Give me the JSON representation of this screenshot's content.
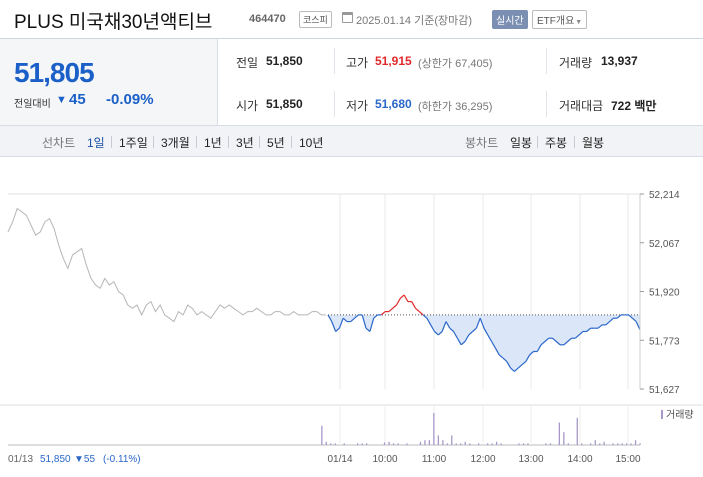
{
  "header": {
    "title": "PLUS 미국채30년액티브",
    "code": "464470",
    "market": "코스피",
    "date": "2025.01.14 기준(장마감)",
    "realtime_label": "실시간",
    "etf_label": "ETF개요"
  },
  "summary": {
    "price": "51,805",
    "change_label": "전일대비",
    "change_arrow": "▼",
    "change": "45",
    "change_pct": "-0.09%"
  },
  "stats": {
    "prev_close": {
      "label": "전일",
      "value": "51,850"
    },
    "high": {
      "label": "고가",
      "value": "51,915",
      "sub": "(상한가 67,405)"
    },
    "volume": {
      "label": "거래량",
      "value": "13,937"
    },
    "open": {
      "label": "시가",
      "value": "51,850"
    },
    "low": {
      "label": "저가",
      "value": "51,680",
      "sub": "(하한가 36,295)"
    },
    "amount": {
      "label": "거래대금",
      "value": "722 백만"
    }
  },
  "toolbar": {
    "line_label": "선차트",
    "line_tabs": [
      "1일",
      "1주일",
      "3개월",
      "1년",
      "3년",
      "5년",
      "10년"
    ],
    "selected_line_tab": "1일",
    "candle_label": "봉차트",
    "candle_tabs": [
      "일봉",
      "주봉",
      "월봉"
    ]
  },
  "colors": {
    "up": "#e0282a",
    "down": "#2a67c9",
    "prev_day": "#b5b5b5",
    "fill": "#dbe6f8",
    "volume": "#a898c9"
  },
  "chart_data": {
    "type": "line",
    "y_ticks": [
      "52,214",
      "52,067",
      "51,920",
      "51,773",
      "51,627"
    ],
    "ylim": [
      51627,
      52214
    ],
    "baseline": 51850,
    "x_ticks": [
      "01/14",
      "10:00",
      "11:00",
      "12:00",
      "13:00",
      "14:00",
      "15:00"
    ],
    "prev_day_label": "01/13",
    "prev_day_close": "51,850",
    "prev_day_change": "▼55",
    "prev_day_change_pct": "(-0.11%)",
    "volume_legend": "거래량",
    "series": [
      {
        "name": "01/13",
        "role": "prev",
        "values": [
          52100,
          52130,
          52170,
          52160,
          52150,
          52120,
          52090,
          52100,
          52130,
          52140,
          52110,
          52060,
          52020,
          51990,
          52030,
          52040,
          52050,
          52000,
          51960,
          51940,
          51930,
          51960,
          51940,
          51950,
          51920,
          51910,
          51880,
          51870,
          51880,
          51850,
          51880,
          51890,
          51860,
          51880,
          51850,
          51840,
          51830,
          51860,
          51850,
          51880,
          51870,
          51850,
          51860,
          51850,
          51840,
          51860,
          51880,
          51870,
          51880,
          51870,
          51860,
          51850,
          51860,
          51860,
          51870,
          51860,
          51850,
          51850,
          51860,
          51860,
          51850,
          51850,
          51860,
          51850,
          51850,
          51850,
          51860,
          51860,
          51850,
          51850
        ]
      },
      {
        "name": "01/14",
        "role": "today",
        "values": [
          51850,
          51830,
          51800,
          51810,
          51840,
          51830,
          51830,
          51840,
          51850,
          51850,
          51810,
          51800,
          51840,
          51850,
          51850,
          51860,
          51860,
          51870,
          51880,
          51900,
          51910,
          51890,
          51890,
          51870,
          51860,
          51850,
          51840,
          51820,
          51800,
          51790,
          51800,
          51830,
          51810,
          51800,
          51780,
          51760,
          51770,
          51790,
          51800,
          51810,
          51840,
          51810,
          51790,
          51770,
          51750,
          51730,
          51720,
          51710,
          51690,
          51680,
          51690,
          51700,
          51710,
          51730,
          51740,
          51740,
          51760,
          51770,
          51780,
          51780,
          51770,
          51760,
          51760,
          51770,
          51780,
          51780,
          51790,
          51800,
          51800,
          51810,
          51810,
          51810,
          51820,
          51820,
          51830,
          51840,
          51840,
          51850,
          51850,
          51850,
          51840,
          51830,
          51805
        ]
      }
    ],
    "volume": [
      0,
      0,
      0,
      0,
      0,
      0,
      0,
      0,
      0,
      0,
      0,
      0,
      0,
      0,
      0,
      0,
      0,
      0,
      0,
      0,
      0,
      0,
      0,
      0,
      0,
      0,
      0,
      0,
      0,
      0,
      0,
      0,
      0,
      0,
      0,
      0,
      0,
      0,
      0,
      0,
      0,
      0,
      0,
      0,
      0,
      0,
      0,
      0,
      0,
      0,
      0,
      0,
      0,
      0,
      0,
      0,
      0,
      0,
      0,
      0,
      0,
      0,
      0,
      0,
      0,
      0,
      0,
      0,
      0,
      0,
      60,
      10,
      5,
      5,
      0,
      5,
      0,
      0,
      5,
      5,
      5,
      0,
      0,
      0,
      8,
      10,
      5,
      5,
      0,
      5,
      0,
      0,
      10,
      15,
      15,
      100,
      30,
      15,
      5,
      30,
      5,
      5,
      10,
      5,
      0,
      5,
      0,
      5,
      5,
      10,
      5,
      0,
      0,
      0,
      5,
      5,
      5,
      0,
      0,
      0,
      5,
      5,
      0,
      70,
      40,
      5,
      0,
      85,
      5,
      0,
      5,
      15,
      5,
      10,
      0,
      5,
      5,
      5,
      5,
      5,
      15,
      5
    ]
  }
}
